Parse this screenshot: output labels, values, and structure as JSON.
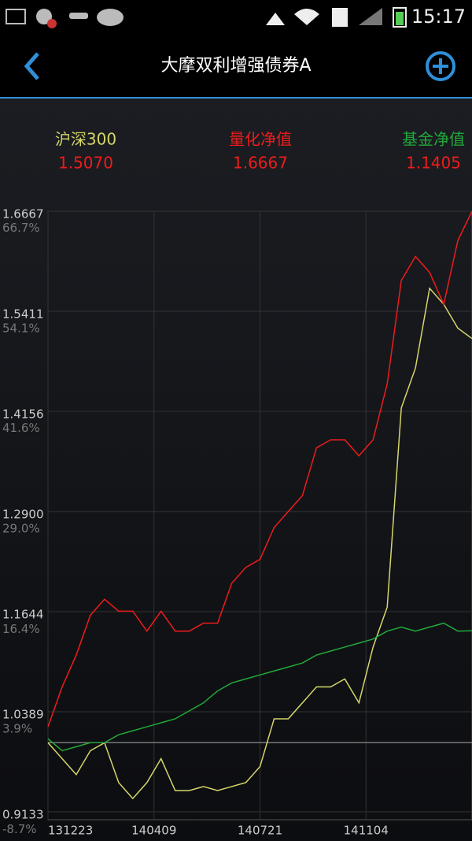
{
  "status_bar": {
    "time": "15:17"
  },
  "header": {
    "title": "大摩双利增强债券A"
  },
  "chart_data": {
    "type": "line",
    "xlim": [
      0,
      30
    ],
    "xticks": [
      {
        "value": 0,
        "label": "131223"
      },
      {
        "value": 7.5,
        "label": "140409"
      },
      {
        "value": 15,
        "label": "140721"
      },
      {
        "value": 22.5,
        "label": "141104"
      }
    ],
    "ylim": [
      0.9133,
      1.6667
    ],
    "yticks": [
      0.9133,
      1.0389,
      1.1644,
      {
        "value": 1.29,
        "label": "1.2900"
      },
      1.4156,
      1.5411,
      1.6667
    ],
    "y2lim": [
      -8.67,
      66.67
    ],
    "y2ticks": [
      {
        "value": -8.7,
        "label": "-8.7%"
      },
      {
        "value": 3.9,
        "label": "3.9%"
      },
      {
        "value": 16.4,
        "label": "16.4%"
      },
      {
        "value": 29.0,
        "label": "29.0%"
      },
      {
        "value": 41.6,
        "label": "41.6%"
      },
      {
        "value": 54.1,
        "label": "54.1%"
      },
      {
        "value": 66.7,
        "label": "66.7%"
      }
    ],
    "baseline": 1,
    "grid": true,
    "legend_values": [
      "1.5070",
      "1.6667",
      "1.1405"
    ],
    "legend_value_color": "#ee1c1c",
    "series": [
      {
        "name": "沪深300",
        "color": "#d6d66a",
        "values": [
          1.0,
          0.98,
          0.96,
          0.99,
          1.0,
          0.95,
          0.93,
          0.95,
          0.98,
          0.94,
          0.94,
          0.945,
          0.94,
          0.945,
          0.95,
          0.97,
          1.03,
          1.03,
          1.05,
          1.07,
          1.07,
          1.08,
          1.05,
          1.12,
          1.17,
          1.42,
          1.47,
          1.57,
          1.55,
          1.52,
          1.507
        ]
      },
      {
        "name": "量化净值",
        "color": "#ee1c1c",
        "values": [
          1.02,
          1.07,
          1.11,
          1.16,
          1.18,
          1.165,
          1.165,
          1.14,
          1.165,
          1.14,
          1.14,
          1.15,
          1.15,
          1.2,
          1.22,
          1.23,
          1.27,
          1.29,
          1.31,
          1.37,
          1.38,
          1.38,
          1.36,
          1.38,
          1.45,
          1.58,
          1.61,
          1.59,
          1.55,
          1.63,
          1.6667
        ]
      },
      {
        "name": "基金净值",
        "color": "#22a83a",
        "values": [
          1.005,
          0.99,
          0.995,
          1.0,
          1.0,
          1.01,
          1.015,
          1.02,
          1.025,
          1.03,
          1.04,
          1.05,
          1.065,
          1.075,
          1.08,
          1.085,
          1.09,
          1.095,
          1.1,
          1.11,
          1.115,
          1.12,
          1.125,
          1.13,
          1.14,
          1.145,
          1.14,
          1.145,
          1.15,
          1.14,
          1.1405
        ]
      }
    ]
  }
}
